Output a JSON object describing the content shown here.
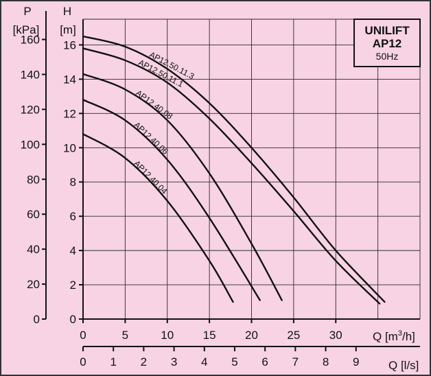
{
  "chart_data": {
    "type": "line",
    "title": "UNILIFT",
    "subtitle": "AP12",
    "frequency": "50Hz",
    "x_primary": {
      "label": "Q [m³/h]",
      "label_main": "Q [m",
      "label_sup": "3",
      "label_tail": "/h]",
      "range": [
        0,
        40
      ],
      "ticks": [
        0,
        5,
        10,
        15,
        20,
        25,
        30
      ]
    },
    "x_secondary": {
      "label": "Q [l/s]",
      "range": [
        0,
        11.11
      ],
      "ticks": [
        0,
        1,
        2,
        3,
        4,
        5,
        6,
        7,
        8,
        9
      ]
    },
    "y_primary": {
      "label_top": "H",
      "label_unit": "[m]",
      "range": [
        0,
        17.5
      ],
      "ticks": [
        0,
        2,
        4,
        6,
        8,
        10,
        12,
        14,
        16
      ]
    },
    "y_secondary": {
      "label_top": "P",
      "label_unit": "[kPa]",
      "range": [
        0,
        171.6
      ],
      "ticks": [
        0,
        20,
        40,
        60,
        80,
        100,
        120,
        140,
        160
      ]
    },
    "grid": true,
    "series": [
      {
        "name": "AP12.50.11.3",
        "x": [
          0,
          5,
          10,
          15,
          20,
          25,
          30,
          35.8
        ],
        "y": [
          16.5,
          15.9,
          14.6,
          12.6,
          10.0,
          7.1,
          4.0,
          1.0
        ]
      },
      {
        "name": "AP12.50.11.1",
        "x": [
          0,
          5,
          10,
          15,
          20,
          25,
          30,
          35.2
        ],
        "y": [
          15.8,
          15.1,
          13.8,
          11.7,
          9.1,
          6.3,
          3.4,
          0.9
        ]
      },
      {
        "name": "AP12.40.08",
        "x": [
          0,
          5,
          10,
          15,
          20,
          23.6
        ],
        "y": [
          14.3,
          13.4,
          11.6,
          8.5,
          4.4,
          1.1
        ]
      },
      {
        "name": "AP12.40.06",
        "x": [
          0,
          5,
          10,
          15,
          21.0
        ],
        "y": [
          12.8,
          11.6,
          9.3,
          5.9,
          1.1
        ]
      },
      {
        "name": "AP12.40.04",
        "x": [
          0,
          5,
          10,
          15,
          17.8
        ],
        "y": [
          10.8,
          9.4,
          6.9,
          3.4,
          1.0
        ]
      }
    ]
  },
  "colors": {
    "background": "#f7d3e3",
    "frame": "#333333",
    "grid": "#2a2a2a",
    "curve": "#111111",
    "legend_box": "#f7d3e3"
  }
}
